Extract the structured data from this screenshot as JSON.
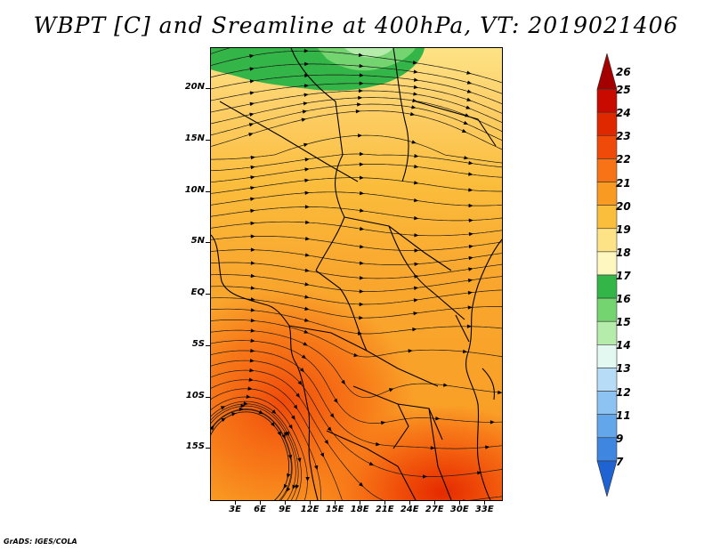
{
  "title": "WBPT [C] and Sreamline at 400hPa, VT: 2019021406",
  "footer": "GrADS: IGES/COLA",
  "map": {
    "lon_range": [
      0,
      35
    ],
    "lat_range": [
      -20,
      24
    ],
    "lat_ticks": [
      {
        "value": 20,
        "label": "20N"
      },
      {
        "value": 15,
        "label": "15N"
      },
      {
        "value": 10,
        "label": "10N"
      },
      {
        "value": 5,
        "label": "5N"
      },
      {
        "value": 0,
        "label": "EQ"
      },
      {
        "value": -5,
        "label": "5S"
      },
      {
        "value": -10,
        "label": "10S"
      },
      {
        "value": -15,
        "label": "15S"
      }
    ],
    "lon_ticks": [
      {
        "value": 3,
        "label": "3E"
      },
      {
        "value": 6,
        "label": "6E"
      },
      {
        "value": 9,
        "label": "9E"
      },
      {
        "value": 12,
        "label": "12E"
      },
      {
        "value": 15,
        "label": "15E"
      },
      {
        "value": 18,
        "label": "18E"
      },
      {
        "value": 21,
        "label": "21E"
      },
      {
        "value": 24,
        "label": "24E"
      },
      {
        "value": 27,
        "label": "27E"
      },
      {
        "value": 30,
        "label": "30E"
      },
      {
        "value": 33,
        "label": "33E"
      }
    ]
  },
  "colorbar": {
    "levels": [
      {
        "label": "26",
        "color": "#a50000"
      },
      {
        "label": "25",
        "color": "#c80a00"
      },
      {
        "label": "24",
        "color": "#e02800"
      },
      {
        "label": "23",
        "color": "#f04a0a"
      },
      {
        "label": "22",
        "color": "#f77316"
      },
      {
        "label": "21",
        "color": "#f99a22"
      },
      {
        "label": "20",
        "color": "#fbbd3c"
      },
      {
        "label": "19",
        "color": "#fde386"
      },
      {
        "label": "18",
        "color": "#fef7c0"
      },
      {
        "label": "17",
        "color": "#33b547"
      },
      {
        "label": "16",
        "color": "#74d470"
      },
      {
        "label": "15",
        "color": "#b5ecab"
      },
      {
        "label": "14",
        "color": "#e4f8f2"
      },
      {
        "label": "13",
        "color": "#b6dcf8"
      },
      {
        "label": "12",
        "color": "#8cc3f2"
      },
      {
        "label": "11",
        "color": "#64a6ea"
      },
      {
        "label": "9",
        "color": "#3f86e0"
      },
      {
        "label": "7",
        "color": "#1f62d2"
      }
    ]
  }
}
